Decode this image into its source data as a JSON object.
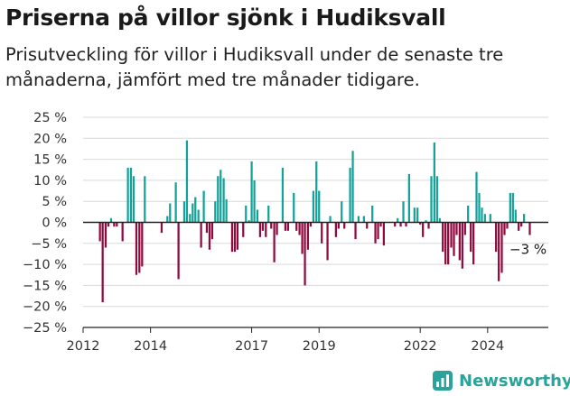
{
  "header": {
    "title": "Priserna på villor sjönk i Hudiksvall",
    "subtitle": "Prisutveckling för villor i Hudiksvall under de senaste tre månaderna, jämfört med tre månader tidigare."
  },
  "brand": {
    "name": "Newsworthy"
  },
  "colors": {
    "positive": "#13a29a",
    "negative": "#8f0a3f",
    "grid": "#d9d9d9",
    "text": "#333333"
  },
  "chart_data": {
    "type": "bar",
    "title": "Priserna på villor sjönk i Hudiksvall",
    "ylim": [
      -25,
      25
    ],
    "yticks": [
      25,
      20,
      15,
      10,
      5,
      0,
      -5,
      -10,
      -15,
      -20,
      -25
    ],
    "ytick_labels": [
      "25 %",
      "20 %",
      "15 %",
      "10 %",
      "5 %",
      "0 %",
      "−5 %",
      "−10 %",
      "−15 %",
      "−20 %",
      "−25 %"
    ],
    "xlim": [
      2012.0,
      2025.8
    ],
    "xticks": [
      2012,
      2014,
      2017,
      2019,
      2022,
      2024
    ],
    "xtick_labels": [
      "2012",
      "2014",
      "2017",
      "2019",
      "2022",
      "2024"
    ],
    "annotation": {
      "text": "−3 %",
      "x": 2025.42,
      "y": -3
    },
    "bar_width_years": 0.06,
    "x": [
      2012.5,
      2012.58,
      2012.67,
      2012.75,
      2012.83,
      2012.92,
      2013.0,
      2013.08,
      2013.17,
      2013.25,
      2013.33,
      2013.42,
      2013.5,
      2013.58,
      2013.67,
      2013.75,
      2013.83,
      2013.92,
      2014.0,
      2014.08,
      2014.17,
      2014.25,
      2014.33,
      2014.42,
      2014.5,
      2014.58,
      2014.67,
      2014.75,
      2014.83,
      2014.92,
      2015.0,
      2015.08,
      2015.17,
      2015.25,
      2015.33,
      2015.42,
      2015.5,
      2015.58,
      2015.67,
      2015.75,
      2015.83,
      2015.92,
      2016.0,
      2016.08,
      2016.17,
      2016.25,
      2016.33,
      2016.42,
      2016.5,
      2016.58,
      2016.67,
      2016.75,
      2016.83,
      2016.92,
      2017.0,
      2017.08,
      2017.17,
      2017.25,
      2017.33,
      2017.42,
      2017.5,
      2017.58,
      2017.67,
      2017.75,
      2017.83,
      2017.92,
      2018.0,
      2018.08,
      2018.17,
      2018.25,
      2018.33,
      2018.42,
      2018.5,
      2018.58,
      2018.67,
      2018.75,
      2018.83,
      2018.92,
      2019.0,
      2019.08,
      2019.17,
      2019.25,
      2019.33,
      2019.42,
      2019.5,
      2019.58,
      2019.67,
      2019.75,
      2019.83,
      2019.92,
      2020.0,
      2020.08,
      2020.17,
      2020.25,
      2020.33,
      2020.42,
      2020.5,
      2020.58,
      2020.67,
      2020.75,
      2020.83,
      2020.92,
      2021.0,
      2021.08,
      2021.17,
      2021.25,
      2021.33,
      2021.42,
      2021.5,
      2021.58,
      2021.67,
      2021.75,
      2021.83,
      2021.92,
      2022.0,
      2022.08,
      2022.17,
      2022.25,
      2022.33,
      2022.42,
      2022.5,
      2022.58,
      2022.67,
      2022.75,
      2022.83,
      2022.92,
      2023.0,
      2023.08,
      2023.17,
      2023.25,
      2023.33,
      2023.42,
      2023.5,
      2023.58,
      2023.67,
      2023.75,
      2023.83,
      2023.92,
      2024.0,
      2024.08,
      2024.17,
      2024.25,
      2024.33,
      2024.42,
      2024.5,
      2024.58,
      2024.67,
      2024.75,
      2024.83,
      2024.92,
      2025.0,
      2025.08,
      2025.17,
      2025.25
    ],
    "values": [
      -4.5,
      -19,
      -6,
      -1,
      1,
      -1,
      -1,
      0,
      -4.5,
      0,
      13,
      13,
      11,
      -12.5,
      -12,
      -10.5,
      11,
      0,
      0,
      0,
      0,
      0,
      -2.5,
      0,
      1.5,
      4.5,
      0,
      9.5,
      -13.5,
      0,
      5,
      19.5,
      2,
      4.5,
      6,
      3,
      -6,
      7.5,
      -2.5,
      -6.5,
      -4,
      5,
      11,
      12.5,
      10.5,
      5.5,
      0,
      -7,
      -7,
      -6.5,
      0,
      -3.5,
      4,
      0.5,
      14.5,
      10,
      3,
      -3.5,
      -2,
      -3.5,
      4,
      -1.5,
      -9.5,
      -3,
      0,
      13,
      -2,
      -2,
      0,
      7,
      -2,
      -3,
      -7.5,
      -15,
      -6.5,
      -1,
      7.5,
      14.5,
      7.5,
      -5,
      0,
      -9,
      1.5,
      0,
      -3.5,
      -1.5,
      5,
      -1.5,
      0,
      13,
      17,
      -4,
      1.5,
      0,
      1.5,
      -1.5,
      0,
      4,
      -5,
      -4,
      -1,
      -5.5,
      0,
      0,
      0,
      -1,
      1,
      -1,
      5,
      -1,
      11.5,
      0,
      3.5,
      3.5,
      -0.5,
      -3.5,
      0.5,
      -1.5,
      11,
      19,
      11,
      1,
      -7,
      -10,
      -10,
      -6,
      -8,
      -3,
      -9,
      -11,
      -3,
      4,
      -7,
      -10,
      12,
      7,
      3.5,
      2,
      0,
      2,
      0,
      -7,
      -14,
      -12,
      -3,
      -1.5,
      7,
      7,
      3,
      -2,
      -1,
      2,
      0,
      -3
    ]
  }
}
